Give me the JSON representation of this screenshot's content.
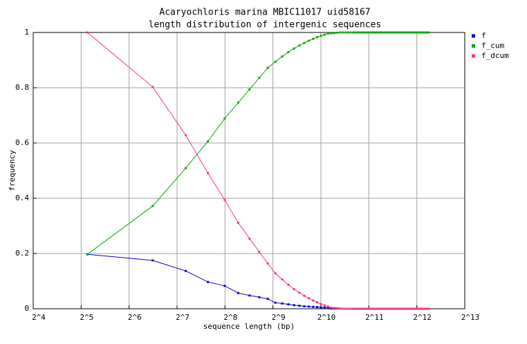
{
  "chart_data": {
    "type": "line",
    "title": "Acaryochloris marina MBIC11017 uid58167",
    "subtitle": "length distribution of intergenic sequences",
    "x_label": "sequence length (bp)",
    "y_label": "frequency",
    "x_scale": "log2",
    "grid": true,
    "legend": "right",
    "xlim": [
      16,
      8192
    ],
    "xticks": [
      {
        "value": 16,
        "label": "2^4"
      },
      {
        "value": 32,
        "label": "2^5"
      },
      {
        "value": 64,
        "label": "2^6"
      },
      {
        "value": 128,
        "label": "2^7"
      },
      {
        "value": 256,
        "label": "2^8"
      },
      {
        "value": 512,
        "label": "2^9"
      },
      {
        "value": 1024,
        "label": "2^10"
      },
      {
        "value": 2048,
        "label": "2^11"
      },
      {
        "value": 4096,
        "label": "2^12"
      },
      {
        "value": 8192,
        "label": "2^13"
      }
    ],
    "ylim": [
      0,
      1
    ],
    "yticks": [
      0,
      0.2,
      0.4,
      0.6,
      0.8,
      1
    ],
    "x": [
      35,
      90,
      145,
      200,
      255,
      310,
      365,
      420,
      475,
      530,
      585,
      640,
      695,
      750,
      805,
      860,
      915,
      970,
      1025,
      1080,
      1135,
      1190,
      1245,
      1300,
      1355,
      1410,
      1465,
      1520,
      1575,
      1630,
      1685,
      1740,
      1795,
      1850,
      1905,
      1960,
      2015,
      2070,
      2125,
      2180,
      2235,
      2290,
      2345,
      2400,
      2455,
      2510,
      2565,
      2620,
      2675,
      2730,
      2785,
      2840,
      2895,
      2950,
      3005,
      3060,
      3115,
      3170,
      3225,
      3280,
      3335,
      3390,
      3445,
      3500,
      3555,
      3610,
      3665,
      3720,
      3775,
      3830,
      3885,
      3940,
      3995,
      4050,
      4105,
      4160,
      4215,
      4270,
      4325,
      4380,
      4435,
      4490,
      4545,
      4600,
      4655,
      4710,
      4765,
      4820,
      4875
    ],
    "series": [
      {
        "name": "f",
        "color": "#0000cc",
        "values": [
          0.197,
          0.175,
          0.137,
          0.097,
          0.083,
          0.057,
          0.048,
          0.042,
          0.036,
          0.022,
          0.019,
          0.016,
          0.013,
          0.011,
          0.009,
          0.008,
          0.007,
          0.006,
          0.005,
          0.004,
          0.004,
          0.001,
          0.001,
          0.001,
          0.001,
          0,
          0,
          0,
          0,
          0,
          0,
          0,
          0,
          0,
          0,
          0,
          0,
          0,
          0,
          0,
          0,
          0,
          0,
          0,
          0,
          0,
          0,
          0,
          0,
          0,
          0,
          0,
          0,
          0,
          0,
          0,
          0,
          0,
          0,
          0,
          0,
          0,
          0,
          0,
          0,
          0,
          0,
          0,
          0,
          0,
          0,
          0,
          0,
          0,
          0,
          0,
          0,
          0,
          0,
          0,
          0,
          0,
          0,
          0,
          0,
          0,
          0,
          0,
          0
        ]
      },
      {
        "name": "f_cum",
        "color": "#00aa00",
        "values": [
          0.197,
          0.372,
          0.509,
          0.606,
          0.689,
          0.746,
          0.794,
          0.836,
          0.872,
          0.894,
          0.913,
          0.929,
          0.942,
          0.953,
          0.962,
          0.97,
          0.977,
          0.983,
          0.988,
          0.992,
          0.996,
          0.997,
          0.998,
          0.999,
          1,
          1,
          1,
          1,
          1,
          1,
          1,
          1,
          1,
          1,
          1,
          1,
          1,
          1,
          1,
          1,
          1,
          1,
          1,
          1,
          1,
          1,
          1,
          1,
          1,
          1,
          1,
          1,
          1,
          1,
          1,
          1,
          1,
          1,
          1,
          1,
          1,
          1,
          1,
          1,
          1,
          1,
          1,
          1,
          1,
          1,
          1,
          1,
          1,
          1,
          1,
          1,
          1,
          1,
          1,
          1,
          1,
          1,
          1,
          1,
          1,
          1,
          1,
          1,
          1
        ]
      },
      {
        "name": "f_dcum",
        "color": "#ff3377",
        "values": [
          1,
          0.803,
          0.628,
          0.491,
          0.394,
          0.311,
          0.254,
          0.206,
          0.164,
          0.128,
          0.106,
          0.087,
          0.071,
          0.058,
          0.047,
          0.038,
          0.03,
          0.023,
          0.017,
          0.012,
          0.008,
          0.004,
          0.003,
          0.002,
          0.001,
          0,
          0,
          0,
          0,
          0,
          0,
          0,
          0,
          0,
          0,
          0,
          0,
          0,
          0,
          0,
          0,
          0,
          0,
          0,
          0,
          0,
          0,
          0,
          0,
          0,
          0,
          0,
          0,
          0,
          0,
          0,
          0,
          0,
          0,
          0,
          0,
          0,
          0,
          0,
          0,
          0,
          0,
          0,
          0,
          0,
          0,
          0,
          0,
          0,
          0,
          0,
          0,
          0,
          0,
          0,
          0,
          0,
          0,
          0,
          0,
          0,
          0,
          0,
          0
        ]
      }
    ]
  }
}
